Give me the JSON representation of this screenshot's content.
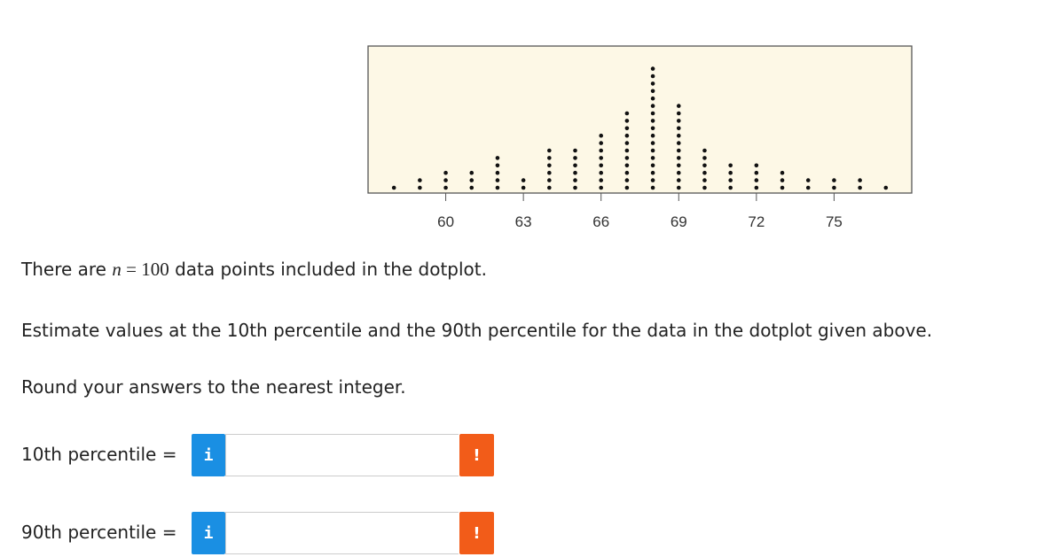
{
  "chart_data": {
    "type": "dotplot",
    "x": [
      58,
      59,
      60,
      61,
      62,
      63,
      64,
      65,
      66,
      67,
      68,
      69,
      70,
      71,
      72,
      73,
      74,
      75,
      76,
      77
    ],
    "values": [
      1,
      2,
      3,
      3,
      5,
      2,
      6,
      6,
      8,
      11,
      17,
      12,
      6,
      4,
      4,
      3,
      2,
      2,
      2,
      1
    ],
    "xlim": [
      57,
      78
    ],
    "xticks": [
      60,
      63,
      66,
      69,
      72,
      75
    ],
    "color": "#111111",
    "background": "#fdf8e6"
  },
  "question": {
    "intro_start": "There are",
    "variable": "n",
    "equals": "=",
    "n": 100,
    "intro_end": "data points included in the dotplot.",
    "task": "Estimate values at the 10th percentile and the 90th percentile for the data in the dotplot given above.",
    "instruction": "Round your answers to the nearest integer."
  },
  "answers": [
    {
      "label": "10th percentile =",
      "info": "i",
      "alert": "!"
    },
    {
      "label": "90th percentile =",
      "info": "i",
      "alert": "!"
    }
  ]
}
